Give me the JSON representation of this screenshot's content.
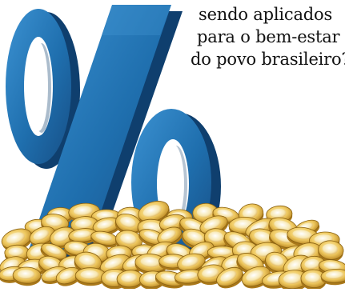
{
  "caption": {
    "lines": [
      "sendo aplicados",
      "para o bem-estar",
      "do povo brasileiro?"
    ]
  },
  "illustration": {
    "symbol_icon": "percent-sign-icon",
    "pile_icon": "coin-pile-icon",
    "colors": {
      "percent_main": "#1f6fae",
      "percent_dark": "#0f3f6e",
      "percent_light": "#3a8fcf",
      "coin_gold": "#e8b43a",
      "coin_light": "#f6e6a8",
      "coin_dark": "#a9781a",
      "text": "#111111"
    }
  }
}
